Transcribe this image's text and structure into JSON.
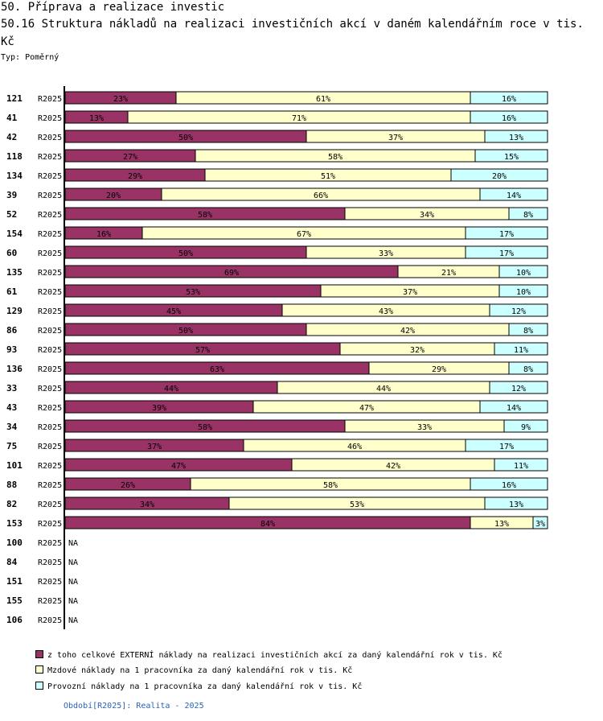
{
  "header": {
    "section_title": "50. Příprava a realizace investic",
    "chart_title": "50.16 Struktura nákladů na realizaci investičních akcí v daném kalendářním roce v tis. Kč",
    "subtitle": "Typ: Poměrný"
  },
  "chart_data": {
    "type": "bar",
    "orientation": "horizontal",
    "stacked": true,
    "normalized": true,
    "title": "50.16 Struktura nákladů na realizaci investičních akcí v daném kalendářním roce v tis. Kč",
    "categories": [
      "121",
      "41",
      "42",
      "118",
      "134",
      "39",
      "52",
      "154",
      "60",
      "135",
      "61",
      "129",
      "86",
      "93",
      "136",
      "33",
      "43",
      "34",
      "75",
      "101",
      "88",
      "82",
      "153",
      "100",
      "84",
      "151",
      "155",
      "106"
    ],
    "period_label": "R2025",
    "na_label": "NA",
    "series": [
      {
        "name": "z toho celkové EXTERNÍ náklady na realizaci investičních akcí za daný kalendářní rok v tis. Kč",
        "color": "#993366",
        "values": [
          23,
          13,
          50,
          27,
          29,
          20,
          58,
          16,
          50,
          69,
          53,
          45,
          50,
          57,
          63,
          44,
          39,
          58,
          37,
          47,
          26,
          34,
          84,
          null,
          null,
          null,
          null,
          null
        ]
      },
      {
        "name": "Mzdové náklady na 1 pracovníka za daný kalendářní rok v tis. Kč",
        "color": "#ffffcc",
        "values": [
          61,
          71,
          37,
          58,
          51,
          66,
          34,
          67,
          33,
          21,
          37,
          43,
          42,
          32,
          29,
          44,
          47,
          33,
          46,
          42,
          58,
          53,
          13,
          null,
          null,
          null,
          null,
          null
        ]
      },
      {
        "name": "Provozní náklady na 1 pracovníka za daný kalendářní rok v tis. Kč",
        "color": "#ccffff",
        "values": [
          16,
          16,
          13,
          15,
          20,
          14,
          8,
          17,
          17,
          10,
          10,
          12,
          8,
          11,
          8,
          12,
          14,
          9,
          17,
          11,
          16,
          13,
          3,
          null,
          null,
          null,
          null,
          null
        ]
      }
    ],
    "xlim": [
      0,
      100
    ]
  },
  "footer": {
    "text": "Období[R2025]: Realita - 2025"
  }
}
